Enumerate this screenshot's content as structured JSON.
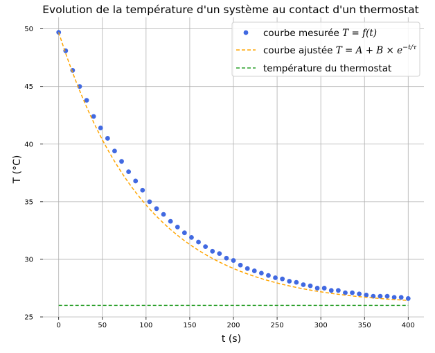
{
  "chart_data": {
    "type": "scatter",
    "title": "Evolution de la température d'un système au contact d'un thermostat",
    "xlabel": "t (s)",
    "ylabel": "T (°C)",
    "xlim": [
      -18,
      418
    ],
    "ylim": [
      25,
      51
    ],
    "grid": true,
    "legend_position": "top-right",
    "x_ticks": [
      0,
      50,
      100,
      150,
      200,
      250,
      300,
      350,
      400
    ],
    "y_ticks": [
      25,
      30,
      35,
      40,
      45,
      50
    ],
    "legend": [
      {
        "pre": "courbe mesurée ",
        "math": "T = f(t)",
        "kind": "marker",
        "color": "#4169e1"
      },
      {
        "pre": "courbe ajustée ",
        "math": "T = A + B × e",
        "sup": "−t/τ",
        "kind": "dashed",
        "color": "#ffa500"
      },
      {
        "pre": "température du thermostat",
        "kind": "dashed",
        "color": "#2ca02c"
      }
    ],
    "series": [
      {
        "kind": "measured",
        "color": "#4169e1",
        "x": [
          0,
          8,
          16,
          24,
          32,
          40,
          48,
          56,
          64,
          72,
          80,
          88,
          96,
          104,
          112,
          120,
          128,
          136,
          144,
          152,
          160,
          168,
          176,
          184,
          192,
          200,
          208,
          216,
          224,
          232,
          240,
          248,
          256,
          264,
          272,
          280,
          288,
          296,
          304,
          312,
          320,
          328,
          336,
          344,
          352,
          360,
          368,
          376,
          384,
          392,
          400
        ],
        "y": [
          49.7,
          48.1,
          46.4,
          45.0,
          43.8,
          42.4,
          41.4,
          40.5,
          39.4,
          38.5,
          37.6,
          36.8,
          36.0,
          35.0,
          34.4,
          33.9,
          33.3,
          32.8,
          32.3,
          31.9,
          31.5,
          31.1,
          30.7,
          30.5,
          30.1,
          29.9,
          29.5,
          29.2,
          29.0,
          28.8,
          28.6,
          28.4,
          28.3,
          28.1,
          28.0,
          27.8,
          27.7,
          27.5,
          27.5,
          27.3,
          27.3,
          27.1,
          27.1,
          27.0,
          26.9,
          26.8,
          26.8,
          26.8,
          26.7,
          26.7,
          26.6
        ]
      },
      {
        "kind": "fit",
        "color": "#ffa500",
        "A": 26.0,
        "B": 23.7,
        "tau": 100
      },
      {
        "kind": "thermostat",
        "color": "#2ca02c",
        "x": [
          0,
          400
        ],
        "y": [
          26.0,
          26.0
        ]
      }
    ]
  }
}
